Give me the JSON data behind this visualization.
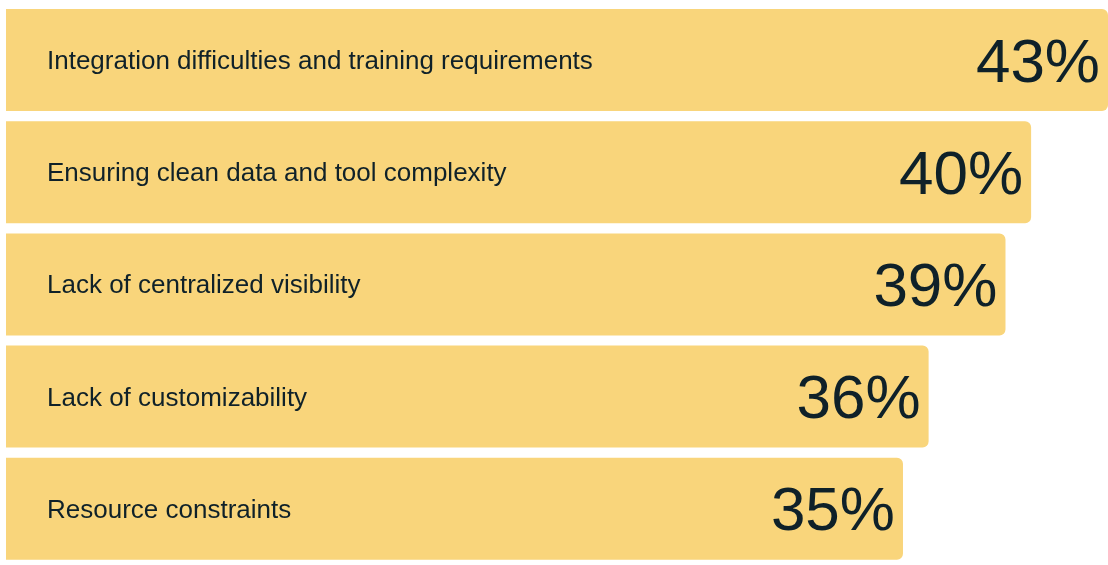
{
  "chart_data": {
    "type": "bar",
    "orientation": "horizontal",
    "categories": [
      "Integration difficulties and training requirements",
      "Ensuring clean data and tool complexity",
      "Lack of centralized visibility",
      "Lack of customizability",
      "Resource constraints"
    ],
    "values": [
      43,
      40,
      39,
      36,
      35
    ],
    "value_labels": [
      "43%",
      "40%",
      "39%",
      "36%",
      "35%"
    ],
    "color": "#f9d57b"
  }
}
